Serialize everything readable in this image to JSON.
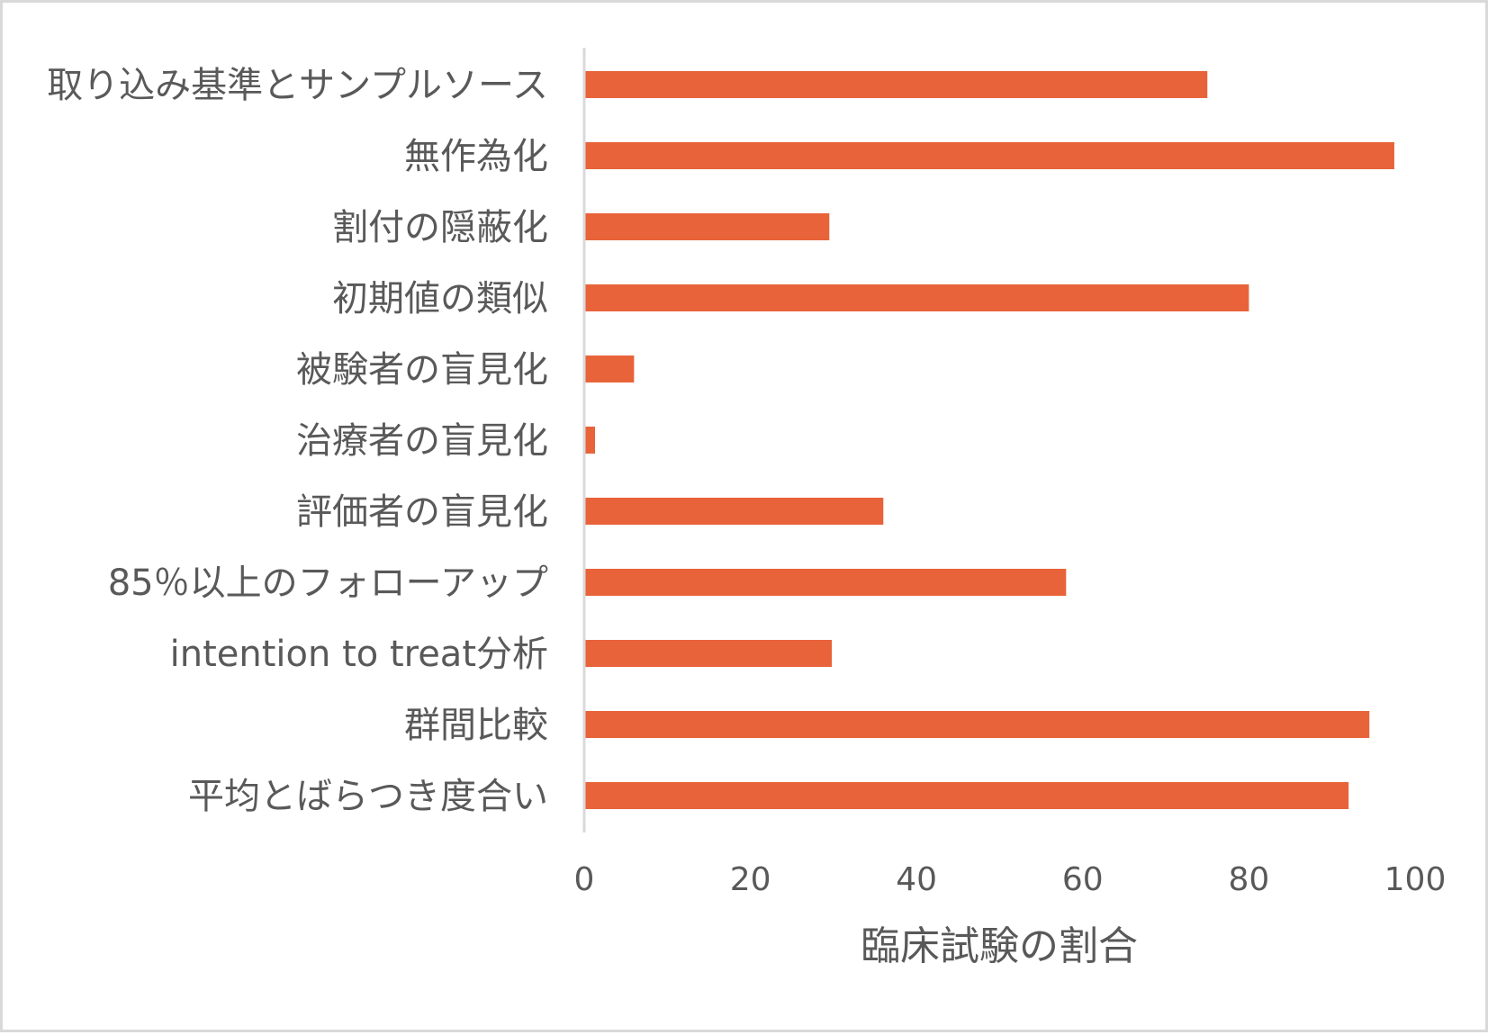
{
  "chart_data": {
    "type": "bar",
    "orientation": "horizontal",
    "categories": [
      "取り込み基準とサンプルソース",
      "無作為化",
      "割付の隠蔽化",
      "初期値の類似",
      "被験者の盲見化",
      "治療者の盲見化",
      "評価者の盲見化",
      "85％以上のフォローアップ",
      "intention to treat分析",
      "群間比較",
      "平均とばらつき度合い"
    ],
    "values": [
      75,
      97.5,
      29.5,
      80,
      6,
      1.3,
      36,
      58,
      29.8,
      94.5,
      92
    ],
    "xlim": [
      0,
      100
    ],
    "xticks": [
      0,
      20,
      40,
      60,
      80,
      100
    ],
    "xlabel": "臨床試験の割合",
    "ylabel": "",
    "title": "",
    "grid": false,
    "legend": "none",
    "bar_color": "#e8633a",
    "axis_color": "#d9d9d9",
    "text_color": "#595959"
  }
}
